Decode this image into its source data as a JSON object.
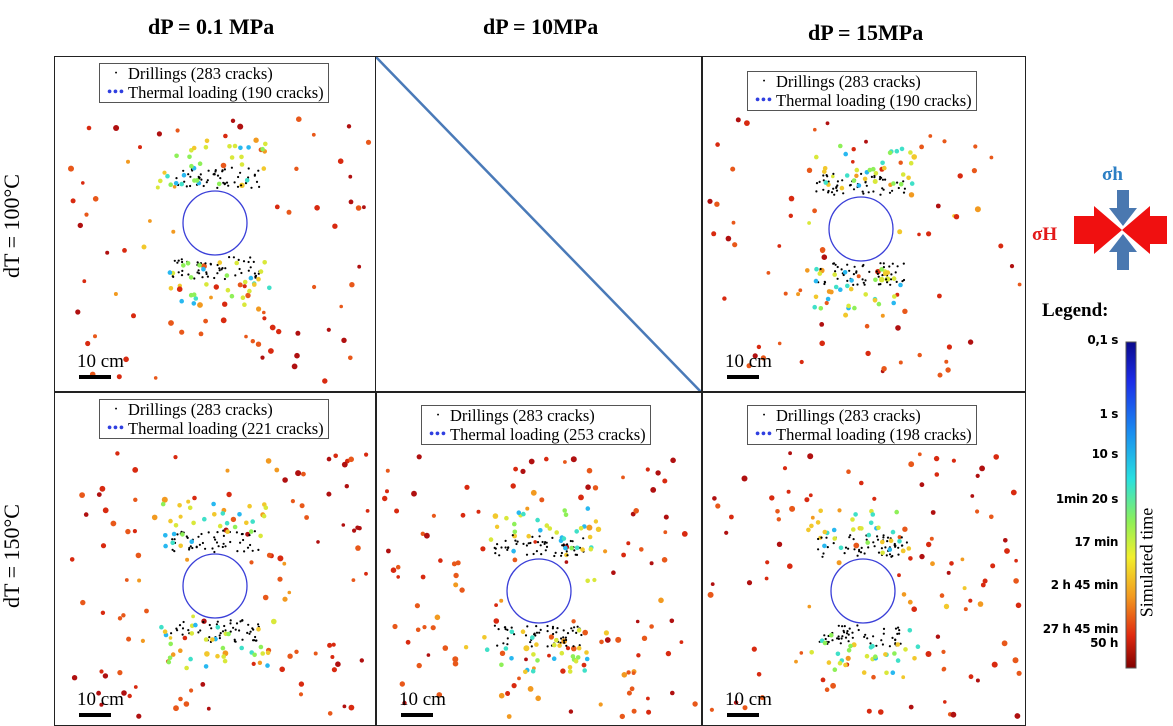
{
  "columns": [
    "dP = 0.1 MPa",
    "dP = 10MPa",
    "dP = 15MPa"
  ],
  "rows": [
    "dT = 100°C",
    "dT = 150°C"
  ],
  "panels": [
    {
      "id": "p11",
      "drillings": "Drillings (283 cracks)",
      "thermal": "Thermal loading (190 cracks)",
      "scale": "10 cm"
    },
    {
      "id": "p13",
      "drillings": "Drillings (283 cracks)",
      "thermal": "Thermal loading (190 cracks)",
      "scale": "10 cm"
    },
    {
      "id": "p21",
      "drillings": "Drillings (283 cracks)",
      "thermal": "Thermal loading (221 cracks)",
      "scale": "10 cm"
    },
    {
      "id": "p22",
      "drillings": "Drillings (283 cracks)",
      "thermal": "Thermal loading (253 cracks)",
      "scale": "10 cm"
    },
    {
      "id": "p23",
      "drillings": "Drillings (283 cracks)",
      "thermal": "Thermal loading (198 cracks)",
      "scale": "10 cm"
    }
  ],
  "stress": {
    "sigma_h": "σh",
    "sigma_H": "σH"
  },
  "legend": {
    "title": "Legend:",
    "axis_label": "Simulated time",
    "ticks": [
      "0,1 s",
      "1 s",
      "10 s",
      "1min 20 s",
      "17 min",
      "2 h 45 min",
      "27 h 45 min",
      "50 h"
    ]
  },
  "colors": {
    "drilling": "#000000",
    "borehole": "#3a3fd8",
    "diagonal": "#4a7ab8",
    "sigma_h": "#2c7fc4",
    "sigma_H": "#e31a1a",
    "arrow_blue": "#4a78b0",
    "arrow_red": "#f01010"
  }
}
